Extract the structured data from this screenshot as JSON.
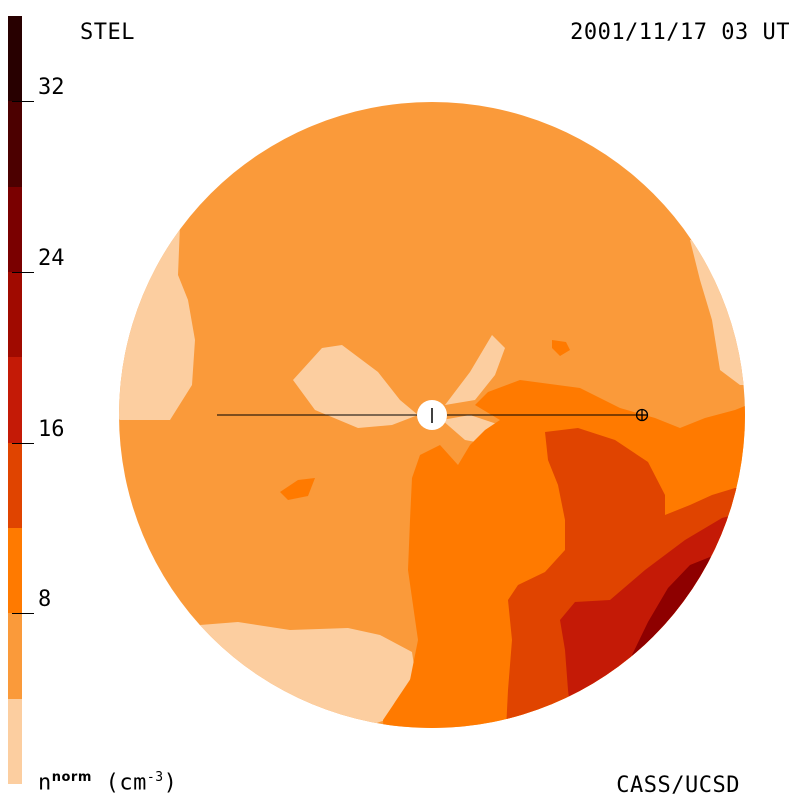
{
  "header": {
    "instrument": "STEL",
    "timestamp": "2001/11/17 03 UT"
  },
  "footer": {
    "quantity_base": "n",
    "quantity_sup": "norm",
    "quantity_unit": "(cm",
    "quantity_unit_sup": "-3",
    "quantity_unit_close": ")",
    "credit": "CASS/UCSD"
  },
  "colorbar": {
    "tick_labels": [
      "32",
      "24",
      "16",
      "8"
    ],
    "levels": [
      0,
      4,
      8,
      12,
      16,
      20,
      24,
      28,
      32,
      36
    ],
    "colors": [
      "#fccea0",
      "#fa9a3a",
      "#ff7a00",
      "#e04400",
      "#c41a06",
      "#a00a00",
      "#7a0000",
      "#4c0000",
      "#280000"
    ]
  },
  "map_colors": {
    "light": "#fccea0",
    "base": "#fa9a3a",
    "orange": "#ff7a00",
    "dark_orange": "#e04400",
    "red": "#c41a06",
    "dark_red": "#8e0000"
  }
}
